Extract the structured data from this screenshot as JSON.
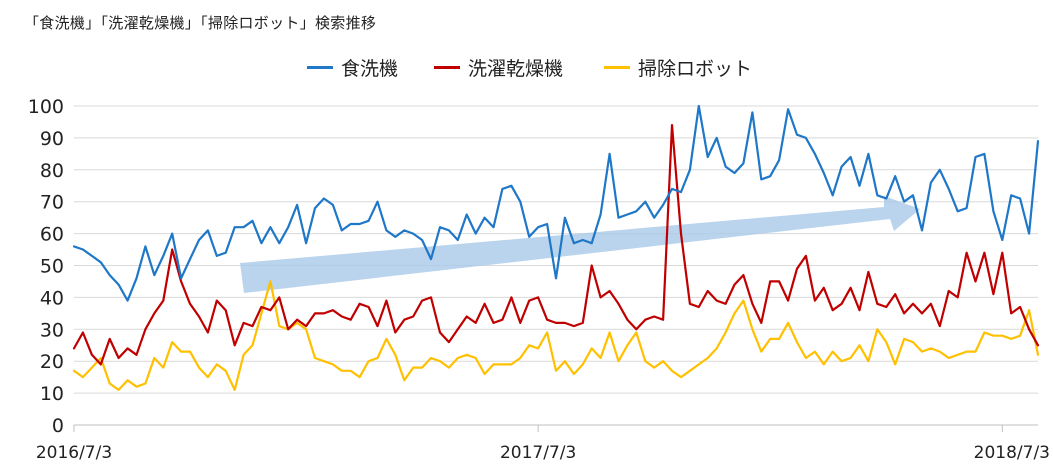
{
  "chart_data": {
    "type": "line",
    "title": "「食洗機」「洗濯乾燥機」「掃除ロボット」検索推移",
    "ylim": [
      0,
      100
    ],
    "y_ticks": [
      0,
      10,
      20,
      30,
      40,
      50,
      60,
      70,
      80,
      90,
      100
    ],
    "x_tick_labels": [
      "2016/7/3",
      "2017/7/3",
      "2018/7/3"
    ],
    "x_tick_positions_week_index": [
      0,
      52,
      104
    ],
    "grid": "horizontal",
    "legend_position": "top",
    "annotation": "upward trend arrow (light blue)",
    "series": [
      {
        "name": "食洗機",
        "color": "#1f77c8",
        "values": [
          56,
          55,
          53,
          51,
          47,
          44,
          39,
          46,
          56,
          47,
          53,
          60,
          46,
          52,
          58,
          61,
          53,
          54,
          62,
          62,
          64,
          57,
          62,
          57,
          62,
          69,
          57,
          68,
          71,
          69,
          61,
          63,
          63,
          64,
          70,
          61,
          59,
          61,
          60,
          58,
          52,
          62,
          61,
          58,
          66,
          60,
          65,
          62,
          74,
          75,
          70,
          59,
          62,
          63,
          46,
          65,
          57,
          58,
          57,
          66,
          85,
          65,
          66,
          67,
          70,
          65,
          69,
          74,
          73,
          80,
          100,
          84,
          90,
          81,
          79,
          82,
          98,
          77,
          78,
          83,
          99,
          91,
          90,
          85,
          79,
          72,
          81,
          84,
          75,
          85,
          72,
          71,
          78,
          70,
          72,
          61,
          76,
          80,
          74,
          67,
          68,
          84,
          85,
          67,
          58,
          72,
          71,
          60,
          89
        ]
      },
      {
        "name": "洗濯乾燥機",
        "color": "#c00000",
        "values": [
          24,
          29,
          22,
          19,
          27,
          21,
          24,
          22,
          30,
          35,
          39,
          55,
          45,
          38,
          34,
          29,
          39,
          36,
          25,
          32,
          31,
          37,
          36,
          40,
          30,
          33,
          31,
          35,
          35,
          36,
          34,
          33,
          38,
          37,
          31,
          39,
          29,
          33,
          34,
          39,
          40,
          29,
          26,
          30,
          34,
          32,
          38,
          32,
          33,
          40,
          32,
          39,
          40,
          33,
          32,
          32,
          31,
          32,
          50,
          40,
          42,
          38,
          33,
          30,
          33,
          34,
          33,
          94,
          60,
          38,
          37,
          42,
          39,
          38,
          44,
          47,
          38,
          32,
          45,
          45,
          39,
          49,
          53,
          39,
          43,
          36,
          38,
          43,
          36,
          48,
          38,
          37,
          41,
          35,
          38,
          35,
          38,
          31,
          42,
          40,
          54,
          45,
          54,
          41,
          54,
          35,
          37,
          30,
          25
        ]
      },
      {
        "name": "掃除ロボット",
        "color": "#ffc000",
        "values": [
          17,
          15,
          18,
          21,
          13,
          11,
          14,
          12,
          13,
          21,
          18,
          26,
          23,
          23,
          18,
          15,
          19,
          17,
          11,
          22,
          25,
          35,
          45,
          31,
          30,
          32,
          30,
          21,
          20,
          19,
          17,
          17,
          15,
          20,
          21,
          27,
          22,
          14,
          18,
          18,
          21,
          20,
          18,
          21,
          22,
          21,
          16,
          19,
          19,
          19,
          21,
          25,
          24,
          29,
          17,
          20,
          16,
          19,
          24,
          21,
          29,
          20,
          25,
          29,
          20,
          18,
          20,
          17,
          15,
          17,
          19,
          21,
          24,
          29,
          35,
          39,
          30,
          23,
          27,
          27,
          32,
          26,
          21,
          23,
          19,
          23,
          20,
          21,
          25,
          20,
          30,
          26,
          19,
          27,
          26,
          23,
          24,
          23,
          21,
          22,
          23,
          23,
          29,
          28,
          28,
          27,
          28,
          36,
          22
        ]
      }
    ]
  }
}
